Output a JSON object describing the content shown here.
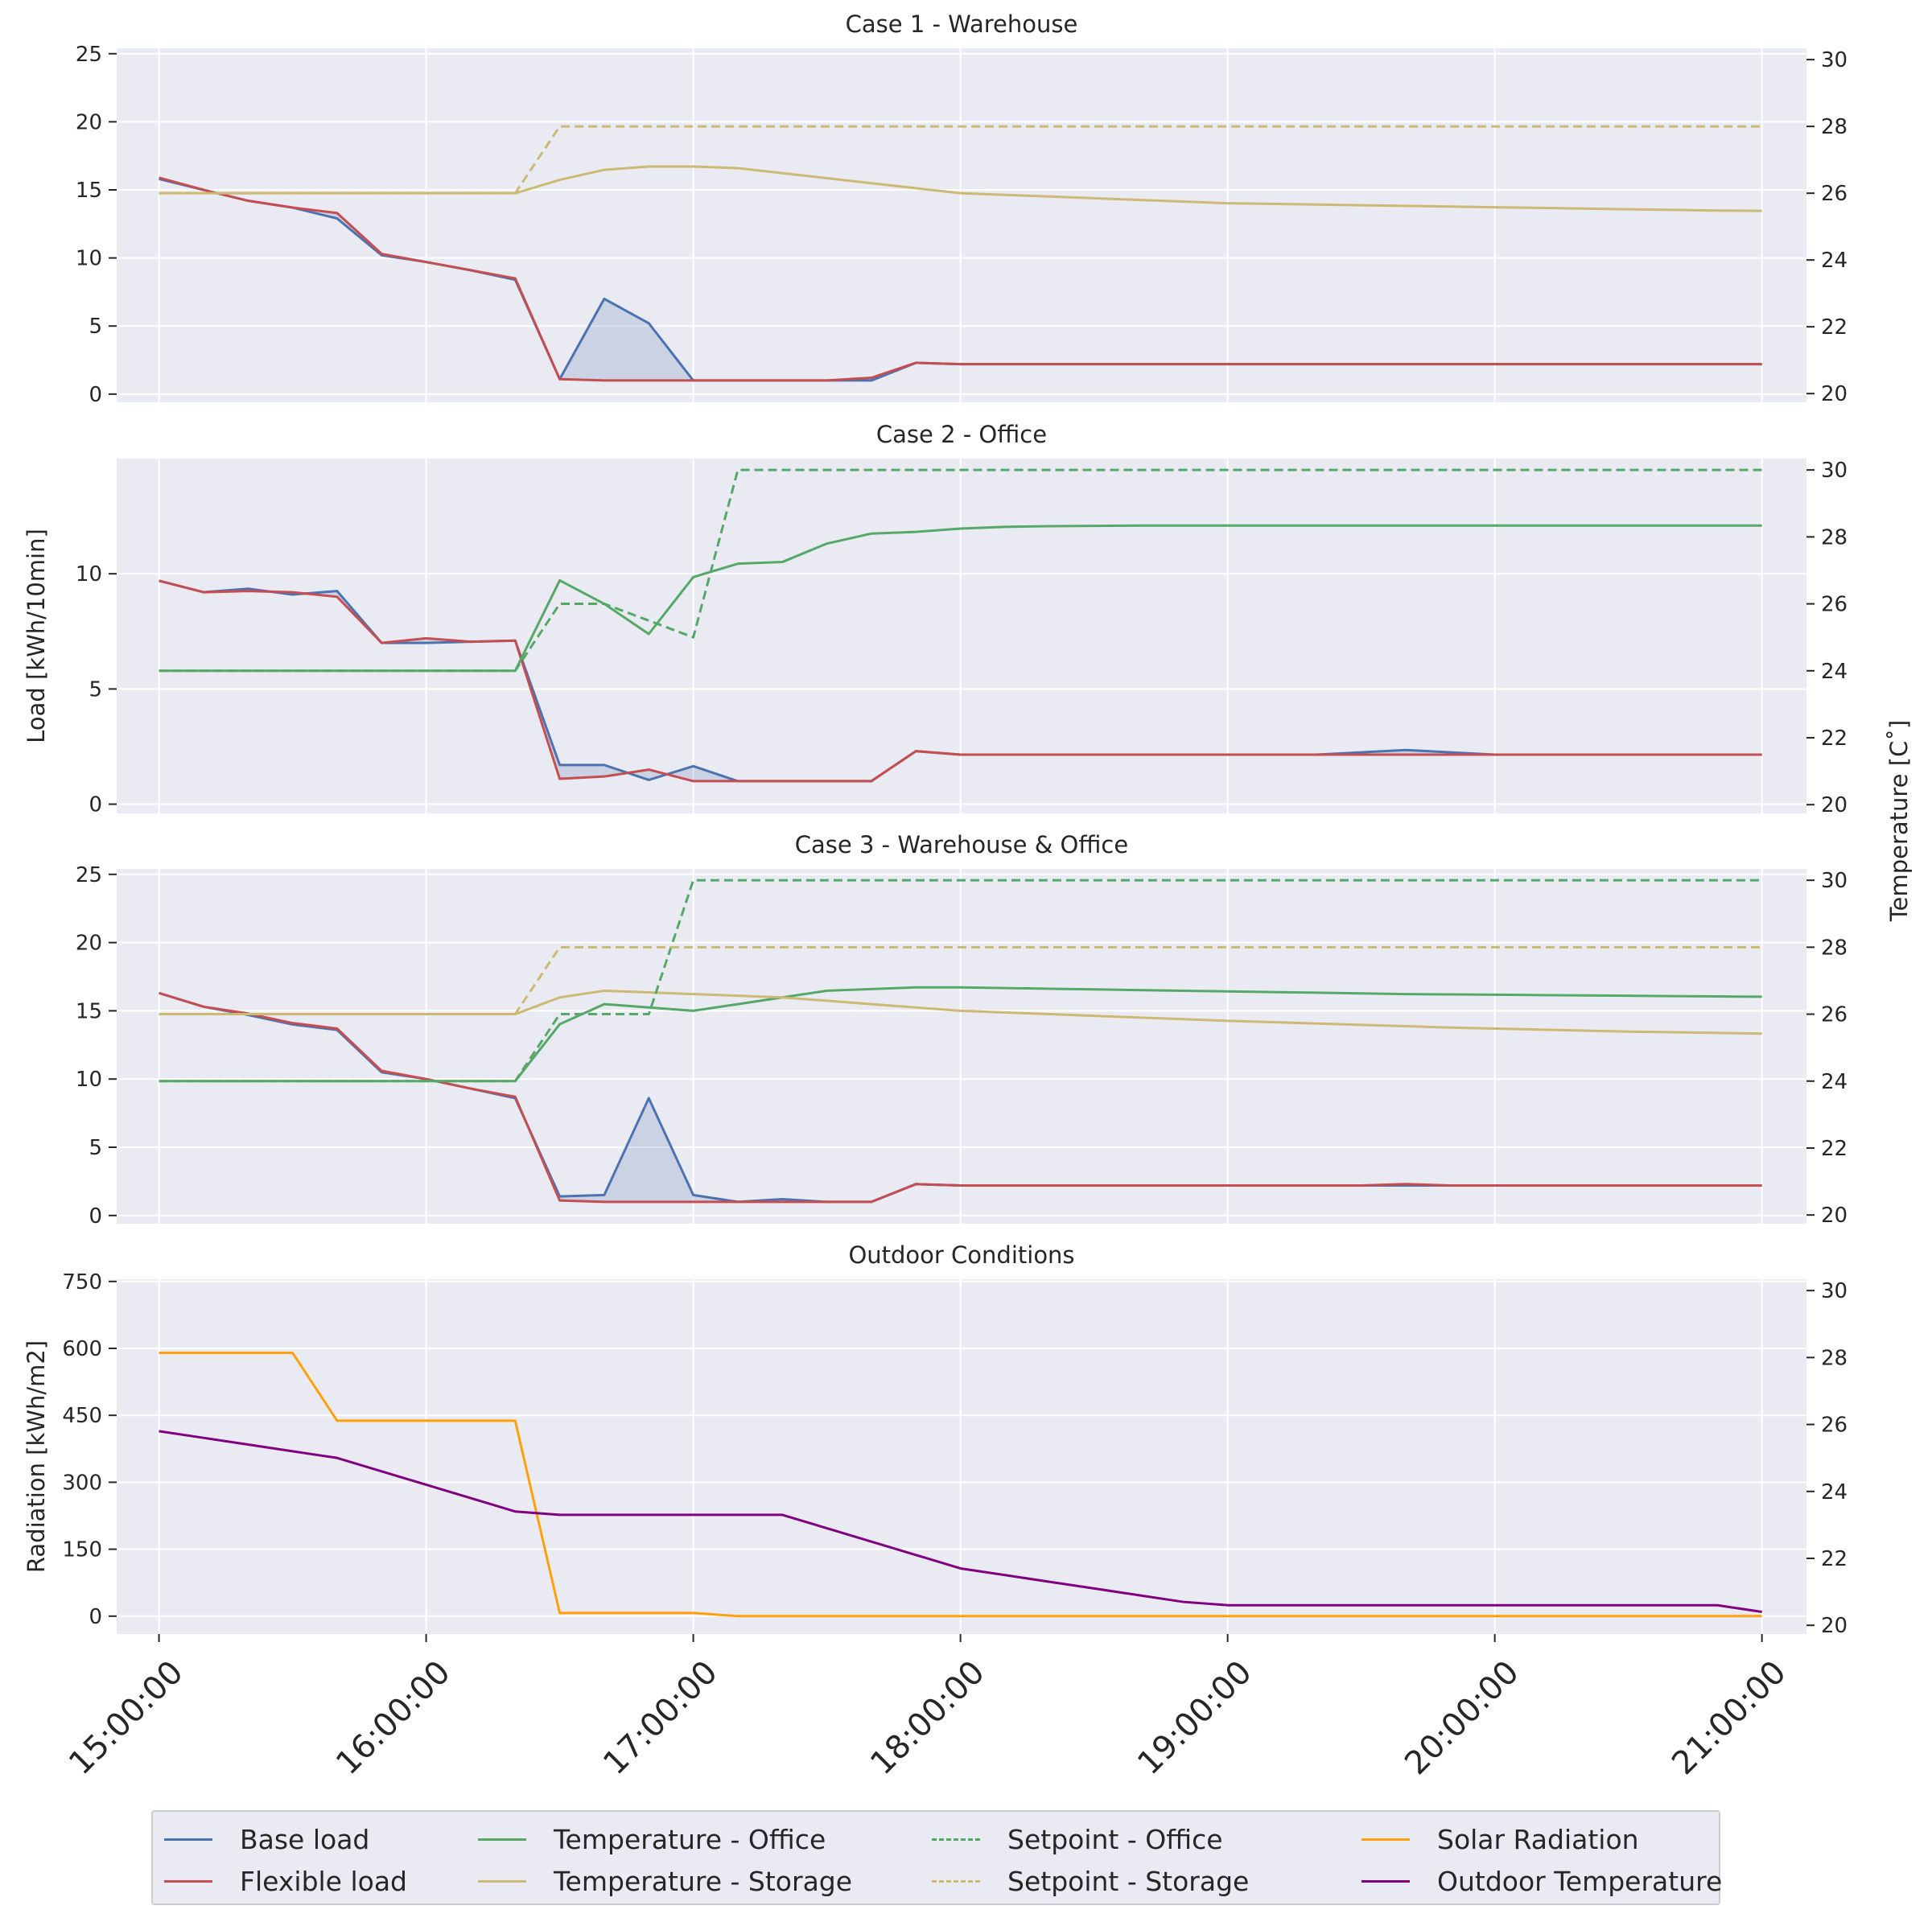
{
  "colors": {
    "base": "#4c72b0",
    "flex": "#c44e52",
    "office": "#55a868",
    "storage": "#ccb974",
    "solar": "#ff9f0a",
    "outdoor": "#800080",
    "fill": "#4c72b0",
    "plotbg": "#eaeaf2",
    "grid": "#ffffff"
  },
  "chart_data": [
    {
      "type": "line",
      "title": "Case 1 - Warehouse",
      "ylabel": "",
      "ylim": [
        -0.6,
        25.4
      ],
      "yticks": [
        0,
        5,
        10,
        15,
        20,
        25
      ],
      "y2label": "",
      "y2lim": [
        19.74,
        30.34
      ],
      "y2ticks": [
        20,
        22,
        24,
        26,
        28,
        30
      ],
      "x": [
        0,
        1,
        2,
        3,
        4,
        5,
        6,
        7,
        8,
        9,
        10,
        11,
        12,
        13,
        14,
        15,
        16,
        17,
        18,
        19,
        20,
        21,
        22,
        23,
        24,
        25,
        26,
        27,
        28,
        29,
        30,
        31,
        32,
        33,
        34,
        35,
        36
      ],
      "series": [
        {
          "name": "Base load",
          "key": "base",
          "axis": "left",
          "style": "solid",
          "values": [
            15.8,
            15.0,
            14.2,
            13.7,
            12.9,
            10.2,
            9.7,
            9.1,
            8.4,
            1.1,
            7.0,
            5.2,
            1.0,
            1.0,
            1.0,
            1.0,
            1.0,
            2.3,
            2.2,
            2.2,
            2.2,
            2.2,
            2.2,
            2.2,
            2.2,
            2.2,
            2.2,
            2.2,
            2.2,
            2.2,
            2.2,
            2.2,
            2.2,
            2.2,
            2.2,
            2.2,
            2.2
          ]
        },
        {
          "name": "Flexible load",
          "key": "flex",
          "axis": "left",
          "style": "solid",
          "values": [
            15.9,
            15.0,
            14.2,
            13.7,
            13.3,
            10.3,
            9.7,
            9.1,
            8.5,
            1.1,
            1.0,
            1.0,
            1.0,
            1.0,
            1.0,
            1.0,
            1.2,
            2.3,
            2.2,
            2.2,
            2.2,
            2.2,
            2.2,
            2.2,
            2.2,
            2.2,
            2.2,
            2.2,
            2.2,
            2.2,
            2.2,
            2.2,
            2.2,
            2.2,
            2.2,
            2.2,
            2.2
          ]
        },
        {
          "name": "Temperature - Storage",
          "key": "storage",
          "axis": "right",
          "style": "solid",
          "values": [
            26.0,
            26.0,
            26.0,
            26.0,
            26.0,
            26.0,
            26.0,
            26.0,
            26.0,
            26.4,
            26.7,
            26.8,
            26.8,
            26.75,
            26.6,
            26.45,
            26.3,
            26.15,
            26.0,
            25.95,
            25.9,
            25.85,
            25.8,
            25.75,
            25.7,
            25.68,
            25.66,
            25.64,
            25.62,
            25.6,
            25.58,
            25.56,
            25.54,
            25.52,
            25.5,
            25.48,
            25.47
          ]
        },
        {
          "name": "Setpoint - Storage",
          "key": "storage",
          "axis": "right",
          "style": "dashed",
          "values": [
            26,
            26,
            26,
            26,
            26,
            26,
            26,
            26,
            26,
            28,
            28,
            28,
            28,
            28,
            28,
            28,
            28,
            28,
            28,
            28,
            28,
            28,
            28,
            28,
            28,
            28,
            28,
            28,
            28,
            28,
            28,
            28,
            28,
            28,
            28,
            28,
            28
          ]
        }
      ],
      "fill_between": [
        "Base load",
        "Flexible load"
      ]
    },
    {
      "type": "line",
      "title": "Case 2 - Office",
      "ylabel": "Load [kWh/10min]",
      "ylim": [
        -0.4,
        15.0
      ],
      "yticks": [
        0,
        5,
        10
      ],
      "y2label": "Temperature [C$^\\circ$]",
      "y2lim": [
        19.74,
        30.34
      ],
      "y2ticks": [
        20,
        22,
        24,
        26,
        28,
        30
      ],
      "x": [
        0,
        1,
        2,
        3,
        4,
        5,
        6,
        7,
        8,
        9,
        10,
        11,
        12,
        13,
        14,
        15,
        16,
        17,
        18,
        19,
        20,
        21,
        22,
        23,
        24,
        25,
        26,
        27,
        28,
        29,
        30,
        31,
        32,
        33,
        34,
        35,
        36
      ],
      "series": [
        {
          "name": "Base load",
          "key": "base",
          "axis": "left",
          "style": "solid",
          "values": [
            9.7,
            9.2,
            9.35,
            9.1,
            9.25,
            7.0,
            7.0,
            7.05,
            7.1,
            1.7,
            1.7,
            1.05,
            1.65,
            1.0,
            1.0,
            1.0,
            1.0,
            2.3,
            2.15,
            2.15,
            2.15,
            2.15,
            2.15,
            2.15,
            2.15,
            2.15,
            2.15,
            2.25,
            2.35,
            2.25,
            2.15,
            2.15,
            2.15,
            2.15,
            2.15,
            2.15,
            2.15
          ]
        },
        {
          "name": "Flexible load",
          "key": "flex",
          "axis": "left",
          "style": "solid",
          "values": [
            9.7,
            9.2,
            9.25,
            9.2,
            9.0,
            7.0,
            7.2,
            7.05,
            7.1,
            1.1,
            1.2,
            1.5,
            1.0,
            1.0,
            1.0,
            1.0,
            1.0,
            2.3,
            2.15,
            2.15,
            2.15,
            2.15,
            2.15,
            2.15,
            2.15,
            2.15,
            2.15,
            2.15,
            2.15,
            2.15,
            2.15,
            2.15,
            2.15,
            2.15,
            2.15,
            2.15,
            2.15
          ]
        },
        {
          "name": "Temperature - Office",
          "key": "office",
          "axis": "right",
          "style": "solid",
          "values": [
            24,
            24,
            24,
            24,
            24,
            24,
            24,
            24,
            24,
            26.7,
            26.0,
            25.1,
            26.8,
            27.2,
            27.25,
            27.8,
            28.1,
            28.15,
            28.25,
            28.3,
            28.32,
            28.33,
            28.34,
            28.34,
            28.34,
            28.34,
            28.34,
            28.34,
            28.34,
            28.34,
            28.34,
            28.34,
            28.34,
            28.34,
            28.34,
            28.34,
            28.34
          ]
        },
        {
          "name": "Setpoint - Office",
          "key": "office",
          "axis": "right",
          "style": "dashed",
          "values": [
            24,
            24,
            24,
            24,
            24,
            24,
            24,
            24,
            24,
            26,
            26,
            25.5,
            25,
            30,
            30,
            30,
            30,
            30,
            30,
            30,
            30,
            30,
            30,
            30,
            30,
            30,
            30,
            30,
            30,
            30,
            30,
            30,
            30,
            30,
            30,
            30,
            30
          ]
        }
      ],
      "fill_between": [
        "Base load",
        "Flexible load"
      ]
    },
    {
      "type": "line",
      "title": "Case 3 - Warehouse & Office",
      "ylabel": "",
      "ylim": [
        -0.6,
        25.4
      ],
      "yticks": [
        0,
        5,
        10,
        15,
        20,
        25
      ],
      "y2label": "",
      "y2lim": [
        19.74,
        30.34
      ],
      "y2ticks": [
        20,
        22,
        24,
        26,
        28,
        30
      ],
      "x": [
        0,
        1,
        2,
        3,
        4,
        5,
        6,
        7,
        8,
        9,
        10,
        11,
        12,
        13,
        14,
        15,
        16,
        17,
        18,
        19,
        20,
        21,
        22,
        23,
        24,
        25,
        26,
        27,
        28,
        29,
        30,
        31,
        32,
        33,
        34,
        35,
        36
      ],
      "series": [
        {
          "name": "Base load",
          "key": "base",
          "axis": "left",
          "style": "solid",
          "values": [
            16.3,
            15.3,
            14.7,
            14.0,
            13.6,
            10.5,
            10.0,
            9.3,
            8.6,
            1.4,
            1.5,
            8.6,
            1.5,
            1.0,
            1.2,
            1.0,
            1.0,
            2.3,
            2.2,
            2.2,
            2.2,
            2.2,
            2.2,
            2.2,
            2.2,
            2.2,
            2.2,
            2.2,
            2.2,
            2.2,
            2.2,
            2.2,
            2.2,
            2.2,
            2.2,
            2.2,
            2.2
          ]
        },
        {
          "name": "Flexible load",
          "key": "flex",
          "axis": "left",
          "style": "solid",
          "values": [
            16.3,
            15.3,
            14.8,
            14.1,
            13.7,
            10.6,
            10.0,
            9.3,
            8.7,
            1.1,
            1.0,
            1.0,
            1.0,
            1.0,
            1.0,
            1.0,
            1.0,
            2.3,
            2.2,
            2.2,
            2.2,
            2.2,
            2.2,
            2.2,
            2.2,
            2.2,
            2.2,
            2.2,
            2.3,
            2.2,
            2.2,
            2.2,
            2.2,
            2.2,
            2.2,
            2.2,
            2.2
          ]
        },
        {
          "name": "Temperature - Office",
          "key": "office",
          "axis": "right",
          "style": "solid",
          "values": [
            24,
            24,
            24,
            24,
            24,
            24,
            24,
            24,
            24,
            25.7,
            26.3,
            26.2,
            26.1,
            26.3,
            26.5,
            26.7,
            26.75,
            26.8,
            26.8,
            26.78,
            26.76,
            26.74,
            26.72,
            26.7,
            26.68,
            26.66,
            26.64,
            26.62,
            26.6,
            26.59,
            26.58,
            26.57,
            26.56,
            26.55,
            26.54,
            26.53,
            26.52
          ]
        },
        {
          "name": "Temperature - Storage",
          "key": "storage",
          "axis": "right",
          "style": "solid",
          "values": [
            26,
            26,
            26,
            26,
            26,
            26,
            26,
            26,
            26,
            26.5,
            26.7,
            26.65,
            26.6,
            26.55,
            26.5,
            26.4,
            26.3,
            26.2,
            26.1,
            26.05,
            26.0,
            25.95,
            25.9,
            25.85,
            25.8,
            25.76,
            25.72,
            25.68,
            25.64,
            25.6,
            25.57,
            25.54,
            25.51,
            25.48,
            25.46,
            25.44,
            25.42
          ]
        },
        {
          "name": "Setpoint - Office",
          "key": "office",
          "axis": "right",
          "style": "dashed",
          "values": [
            24,
            24,
            24,
            24,
            24,
            24,
            24,
            24,
            24,
            26,
            26,
            26,
            30,
            30,
            30,
            30,
            30,
            30,
            30,
            30,
            30,
            30,
            30,
            30,
            30,
            30,
            30,
            30,
            30,
            30,
            30,
            30,
            30,
            30,
            30,
            30,
            30
          ]
        },
        {
          "name": "Setpoint - Storage",
          "key": "storage",
          "axis": "right",
          "style": "dashed",
          "values": [
            26,
            26,
            26,
            26,
            26,
            26,
            26,
            26,
            26,
            28,
            28,
            28,
            28,
            28,
            28,
            28,
            28,
            28,
            28,
            28,
            28,
            28,
            28,
            28,
            28,
            28,
            28,
            28,
            28,
            28,
            28,
            28,
            28,
            28,
            28,
            28,
            28
          ]
        }
      ],
      "fill_between": [
        "Base load",
        "Flexible load"
      ]
    },
    {
      "type": "line",
      "title": "Outdoor Conditions",
      "ylabel": "Radiation [kWh/m2]",
      "ylim": [
        -40,
        755
      ],
      "yticks": [
        0,
        150,
        300,
        450,
        600,
        750
      ],
      "y2label": "",
      "y2lim": [
        19.74,
        30.34
      ],
      "y2ticks": [
        20,
        22,
        24,
        26,
        28,
        30
      ],
      "x": [
        0,
        1,
        2,
        3,
        4,
        5,
        6,
        7,
        8,
        9,
        10,
        11,
        12,
        13,
        14,
        15,
        16,
        17,
        18,
        19,
        20,
        21,
        22,
        23,
        24,
        25,
        26,
        27,
        28,
        29,
        30,
        31,
        32,
        33,
        34,
        35,
        36
      ],
      "series": [
        {
          "name": "Solar Radiation",
          "key": "solar",
          "axis": "left",
          "style": "solid",
          "values": [
            590,
            590,
            590,
            590,
            438,
            438,
            438,
            438,
            438,
            7,
            7,
            7,
            7,
            0,
            0,
            0,
            0,
            0,
            0,
            0,
            0,
            0,
            0,
            0,
            0,
            0,
            0,
            0,
            0,
            0,
            0,
            0,
            0,
            0,
            0,
            0,
            0
          ]
        },
        {
          "name": "Outdoor Temperature",
          "key": "outdoor",
          "axis": "right",
          "style": "solid",
          "values": [
            25.8,
            25.6,
            25.4,
            25.2,
            25.0,
            24.6,
            24.2,
            23.8,
            23.4,
            23.3,
            23.3,
            23.3,
            23.3,
            23.3,
            23.3,
            22.9,
            22.5,
            22.1,
            21.7,
            21.5,
            21.3,
            21.1,
            20.9,
            20.7,
            20.6,
            20.6,
            20.6,
            20.6,
            20.6,
            20.6,
            20.6,
            20.6,
            20.6,
            20.6,
            20.6,
            20.6,
            20.4
          ]
        }
      ],
      "fill_between": []
    }
  ],
  "x_ticks": [
    "15:00:00",
    "16:00:00",
    "17:00:00",
    "18:00:00",
    "19:00:00",
    "20:00:00",
    "21:00:00"
  ],
  "x_tick_positions": [
    0,
    6,
    12,
    18,
    24,
    30,
    36
  ],
  "legend": [
    {
      "label": "Base load",
      "key": "base",
      "style": "solid"
    },
    {
      "label": "Flexible load",
      "key": "flex",
      "style": "solid"
    },
    {
      "label": "Temperature - Office",
      "key": "office",
      "style": "solid"
    },
    {
      "label": "Temperature - Storage",
      "key": "storage",
      "style": "solid"
    },
    {
      "label": "Setpoint - Office",
      "key": "office",
      "style": "dashed"
    },
    {
      "label": "Setpoint - Storage",
      "key": "storage",
      "style": "dashed"
    },
    {
      "label": "Solar Radiation",
      "key": "solar",
      "style": "solid"
    },
    {
      "label": "Outdoor Temperature",
      "key": "outdoor",
      "style": "solid"
    }
  ],
  "shared_right_label": "Temperature [C˚]"
}
